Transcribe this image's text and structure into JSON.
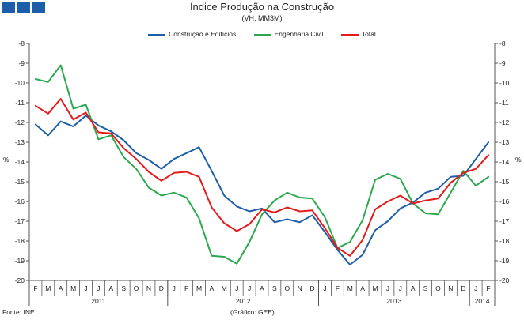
{
  "header": {
    "title": "Índice Produção na Construção",
    "subtitle": "(VH, MM3M)"
  },
  "footer": {
    "source": "Fonte: INE",
    "credit": "(Gráfico: GEE)"
  },
  "colors": {
    "logo": "#1c5fa8"
  },
  "chart_data": {
    "type": "line",
    "ylabel": "%",
    "ylabel_right": "%",
    "ylim": [
      -20,
      -8
    ],
    "yticks": [
      -20,
      -19,
      -18,
      -17,
      -16,
      -15,
      -14,
      -13,
      -12,
      -11,
      -10,
      -9,
      -8
    ],
    "grid": false,
    "legend_position": "top",
    "month_labels": [
      "F",
      "M",
      "A",
      "M",
      "J",
      "J",
      "A",
      "S",
      "O",
      "N",
      "D",
      "J",
      "F",
      "M",
      "A",
      "M",
      "J",
      "J",
      "A",
      "S",
      "O",
      "N",
      "D",
      "J",
      "F",
      "M",
      "A",
      "M",
      "J",
      "J",
      "A",
      "S",
      "O",
      "N",
      "D",
      "J",
      "F"
    ],
    "year_groups": [
      {
        "label": "2011",
        "start": 0,
        "end": 10
      },
      {
        "label": "2012",
        "start": 11,
        "end": 22
      },
      {
        "label": "2013",
        "start": 23,
        "end": 34
      },
      {
        "label": "2014",
        "start": 35,
        "end": 36
      }
    ],
    "series": [
      {
        "name": "Construção e Edifícios",
        "color": "#1f5fa8",
        "values": [
          -12.1,
          -12.65,
          -11.95,
          -12.2,
          -11.65,
          -12.15,
          -12.45,
          -12.9,
          -13.55,
          -13.9,
          -14.35,
          -13.85,
          -13.55,
          -13.25,
          -14.45,
          -15.7,
          -16.25,
          -16.5,
          -16.35,
          -17.05,
          -16.9,
          -17.05,
          -16.7,
          -17.55,
          -18.45,
          -19.2,
          -18.7,
          -17.45,
          -17.0,
          -16.35,
          -16.05,
          -15.55,
          -15.35,
          -14.75,
          -14.7,
          -13.85,
          -13.0
        ]
      },
      {
        "name": "Engenharia Civil",
        "color": "#2ca94f",
        "values": [
          -9.8,
          -9.95,
          -9.1,
          -11.3,
          -11.1,
          -12.85,
          -12.65,
          -13.75,
          -14.35,
          -15.3,
          -15.7,
          -15.55,
          -15.8,
          -16.85,
          -18.75,
          -18.8,
          -19.15,
          -18.05,
          -16.65,
          -15.95,
          -15.55,
          -15.8,
          -15.85,
          -16.8,
          -18.35,
          -18.05,
          -16.95,
          -14.9,
          -14.6,
          -14.85,
          -16.1,
          -16.6,
          -16.65,
          -15.55,
          -14.45,
          -15.2,
          -14.75
        ]
      },
      {
        "name": "Total",
        "color": "#e41b1b",
        "values": [
          -11.15,
          -11.55,
          -10.8,
          -11.85,
          -11.5,
          -12.5,
          -12.55,
          -13.3,
          -13.85,
          -14.5,
          -14.95,
          -14.55,
          -14.5,
          -14.75,
          -16.3,
          -17.1,
          -17.5,
          -17.15,
          -16.4,
          -16.55,
          -16.3,
          -16.5,
          -16.45,
          -17.35,
          -18.35,
          -18.75,
          -17.95,
          -16.4,
          -16.0,
          -15.7,
          -16.1,
          -15.95,
          -15.85,
          -15.05,
          -14.55,
          -14.35,
          -13.65
        ]
      }
    ]
  }
}
